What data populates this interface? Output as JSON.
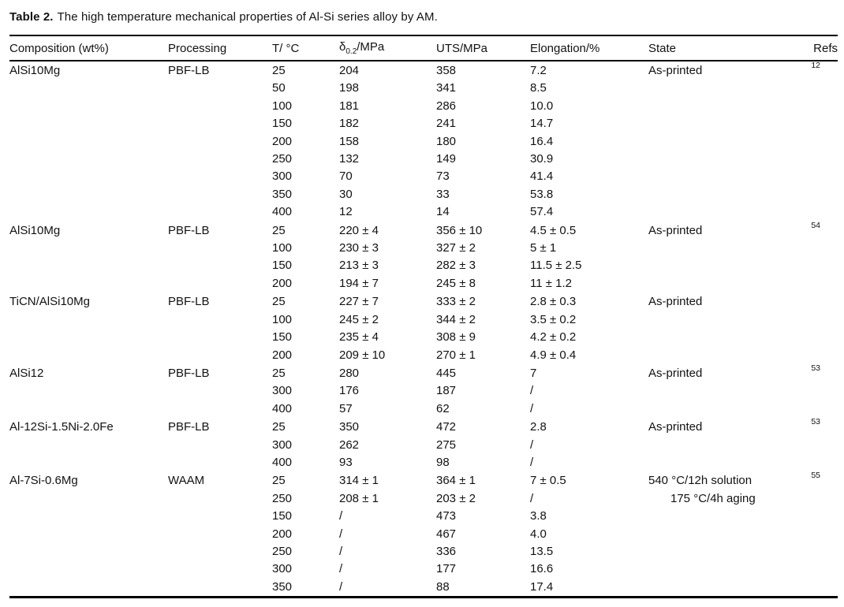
{
  "colors": {
    "background": "#ffffff",
    "text": "#121212",
    "rule": "#000000"
  },
  "caption": {
    "label": "Table 2.",
    "text": "The high temperature mechanical properties of Al-Si series alloy by AM."
  },
  "columns": {
    "composition": "Composition (wt%)",
    "processing": "Processing",
    "temperature": "T/ °C",
    "yield_symbol": "δ",
    "yield_sub": "0.2",
    "yield_suffix": "/MPa",
    "uts": "UTS/MPa",
    "elongation": "Elongation/%",
    "state": "State",
    "refs": "Refs"
  },
  "groups": [
    {
      "composition": "AlSi10Mg",
      "processing": "PBF-LB",
      "state_lines": [
        "As-printed"
      ],
      "ref": "12",
      "rows": [
        [
          "25",
          "204",
          "358",
          "7.2"
        ],
        [
          "50",
          "198",
          "341",
          "8.5"
        ],
        [
          "100",
          "181",
          "286",
          "10.0"
        ],
        [
          "150",
          "182",
          "241",
          "14.7"
        ],
        [
          "200",
          "158",
          "180",
          "16.4"
        ],
        [
          "250",
          "132",
          "149",
          "30.9"
        ],
        [
          "300",
          "70",
          "73",
          "41.4"
        ],
        [
          "350",
          "30",
          "33",
          "53.8"
        ],
        [
          "400",
          "12",
          "14",
          "57.4"
        ]
      ]
    },
    {
      "composition": "AlSi10Mg",
      "processing": "PBF-LB",
      "state_lines": [
        "As-printed"
      ],
      "ref": "54",
      "rows": [
        [
          "25",
          "220 ± 4",
          "356 ± 10",
          "4.5 ± 0.5"
        ],
        [
          "100",
          "230 ± 3",
          "327 ± 2",
          "5 ± 1"
        ],
        [
          "150",
          "213 ± 3",
          "282 ± 3",
          "11.5 ± 2.5"
        ],
        [
          "200",
          "194 ± 7",
          "245 ± 8",
          "11 ± 1.2"
        ]
      ]
    },
    {
      "composition": "TiCN/AlSi10Mg",
      "processing": "PBF-LB",
      "state_lines": [
        "As-printed"
      ],
      "ref": "",
      "rows": [
        [
          "25",
          "227 ± 7",
          "333 ± 2",
          "2.8 ± 0.3"
        ],
        [
          "100",
          "245 ± 2",
          "344 ± 2",
          "3.5 ± 0.2"
        ],
        [
          "150",
          "235 ± 4",
          "308 ± 9",
          "4.2 ± 0.2"
        ],
        [
          "200",
          "209 ± 10",
          "270 ± 1",
          "4.9 ± 0.4"
        ]
      ]
    },
    {
      "composition": "AlSi12",
      "processing": "PBF-LB",
      "state_lines": [
        "As-printed"
      ],
      "ref": "53",
      "rows": [
        [
          "25",
          "280",
          "445",
          "7"
        ],
        [
          "300",
          "176",
          "187",
          "/"
        ],
        [
          "400",
          "57",
          "62",
          "/"
        ]
      ]
    },
    {
      "composition": "Al-12Si-1.5Ni-2.0Fe",
      "processing": "PBF-LB",
      "state_lines": [
        "As-printed"
      ],
      "ref": "53",
      "rows": [
        [
          "25",
          "350",
          "472",
          "2.8"
        ],
        [
          "300",
          "262",
          "275",
          "/"
        ],
        [
          "400",
          "93",
          "98",
          "/"
        ]
      ]
    },
    {
      "composition": "Al-7Si-0.6Mg",
      "processing": "WAAM",
      "state_lines": [
        "540 °C/12h solution",
        "175 °C/4h aging"
      ],
      "ref": "55",
      "rows": [
        [
          "25",
          "314 ± 1",
          "364 ± 1",
          "7 ± 0.5"
        ],
        [
          "250",
          "208 ± 1",
          "203 ± 2",
          "/"
        ],
        [
          "150",
          "/",
          "473",
          "3.8"
        ],
        [
          "200",
          "/",
          "467",
          "4.0"
        ],
        [
          "250",
          "/",
          "336",
          "13.5"
        ],
        [
          "300",
          "/",
          "177",
          "16.6"
        ],
        [
          "350",
          "/",
          "88",
          "17.4"
        ]
      ]
    }
  ]
}
